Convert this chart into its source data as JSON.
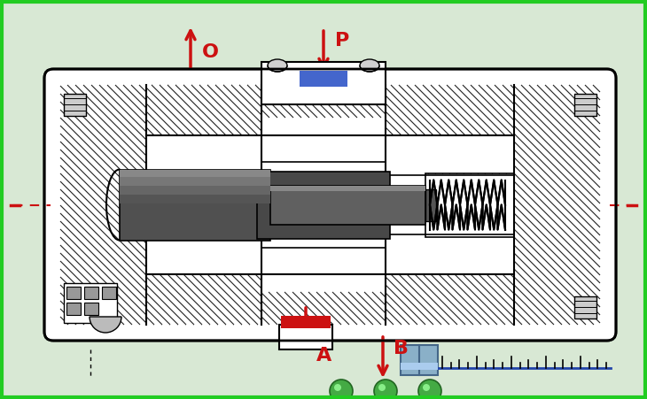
{
  "bg_color": "#d8e8d4",
  "border_color": "#22cc22",
  "body_fill": "#f0f0f0",
  "shaft_dark": "#555555",
  "shaft_mid": "#777777",
  "shaft_light": "#999999",
  "blue_rect": "#4466cc",
  "red_port": "#cc1111",
  "arrow_color": "#cc1111",
  "dashed_color": "#cc1111",
  "white_area": "#ffffff",
  "hatch_bg": "#f0f0ee",
  "label_O": "O",
  "label_P": "P",
  "label_A": "A",
  "label_B": "B",
  "fig_width": 7.3,
  "fig_height": 4.51,
  "dpi": 100
}
